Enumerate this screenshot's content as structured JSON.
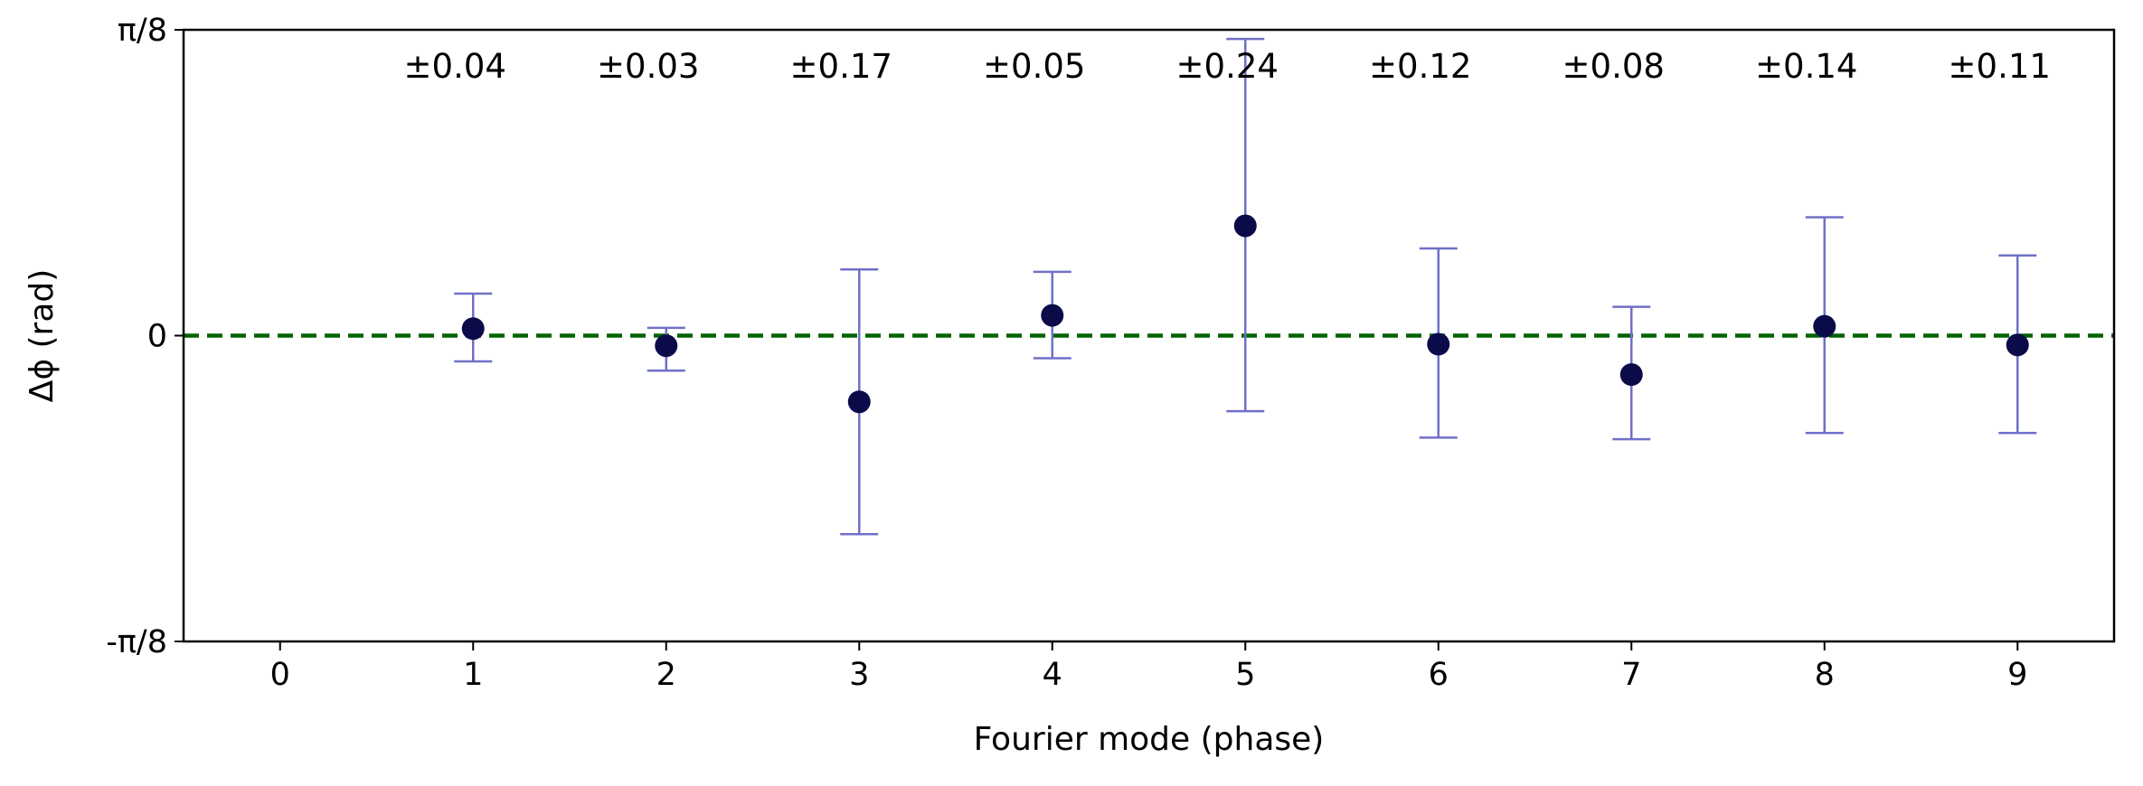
{
  "chart_data": {
    "type": "scatter",
    "title": "",
    "xlabel": "Fourier mode (phase)",
    "ylabel": "Δϕ (rad)",
    "xlim": [
      -0.5,
      9.5
    ],
    "ylim": [
      -0.3927,
      0.3927
    ],
    "x_ticks": [
      0,
      1,
      2,
      3,
      4,
      5,
      6,
      7,
      8,
      9
    ],
    "x_tick_labels": [
      "0",
      "1",
      "2",
      "3",
      "4",
      "5",
      "6",
      "7",
      "8",
      "9"
    ],
    "y_ticks": [
      -0.3927,
      0,
      0.3927
    ],
    "y_tick_labels": [
      "-π/8",
      "0",
      "π/8"
    ],
    "reference_line": {
      "y": 0,
      "style": "dashed",
      "color": "#006400"
    },
    "marker_color": "#0b0b4a",
    "errorbar_color": "#7070c8",
    "points": [
      {
        "x": 1,
        "y": 0.009,
        "yerr_low": 0.042,
        "yerr_high": 0.045,
        "annotation": "±0.04"
      },
      {
        "x": 2,
        "y": -0.013,
        "yerr_low": 0.032,
        "yerr_high": 0.023,
        "annotation": "±0.03"
      },
      {
        "x": 3,
        "y": -0.085,
        "yerr_low": 0.17,
        "yerr_high": 0.17,
        "annotation": "±0.17"
      },
      {
        "x": 4,
        "y": 0.026,
        "yerr_low": 0.055,
        "yerr_high": 0.056,
        "annotation": "±0.05"
      },
      {
        "x": 5,
        "y": 0.141,
        "yerr_low": 0.238,
        "yerr_high": 0.24,
        "annotation": "±0.24"
      },
      {
        "x": 6,
        "y": -0.011,
        "yerr_low": 0.12,
        "yerr_high": 0.123,
        "annotation": "±0.12"
      },
      {
        "x": 7,
        "y": -0.05,
        "yerr_low": 0.083,
        "yerr_high": 0.087,
        "annotation": "±0.08"
      },
      {
        "x": 8,
        "y": 0.012,
        "yerr_low": 0.137,
        "yerr_high": 0.14,
        "annotation": "±0.14"
      },
      {
        "x": 9,
        "y": -0.012,
        "yerr_low": 0.113,
        "yerr_high": 0.115,
        "annotation": "±0.11"
      }
    ],
    "grid": false,
    "legend": "none"
  }
}
